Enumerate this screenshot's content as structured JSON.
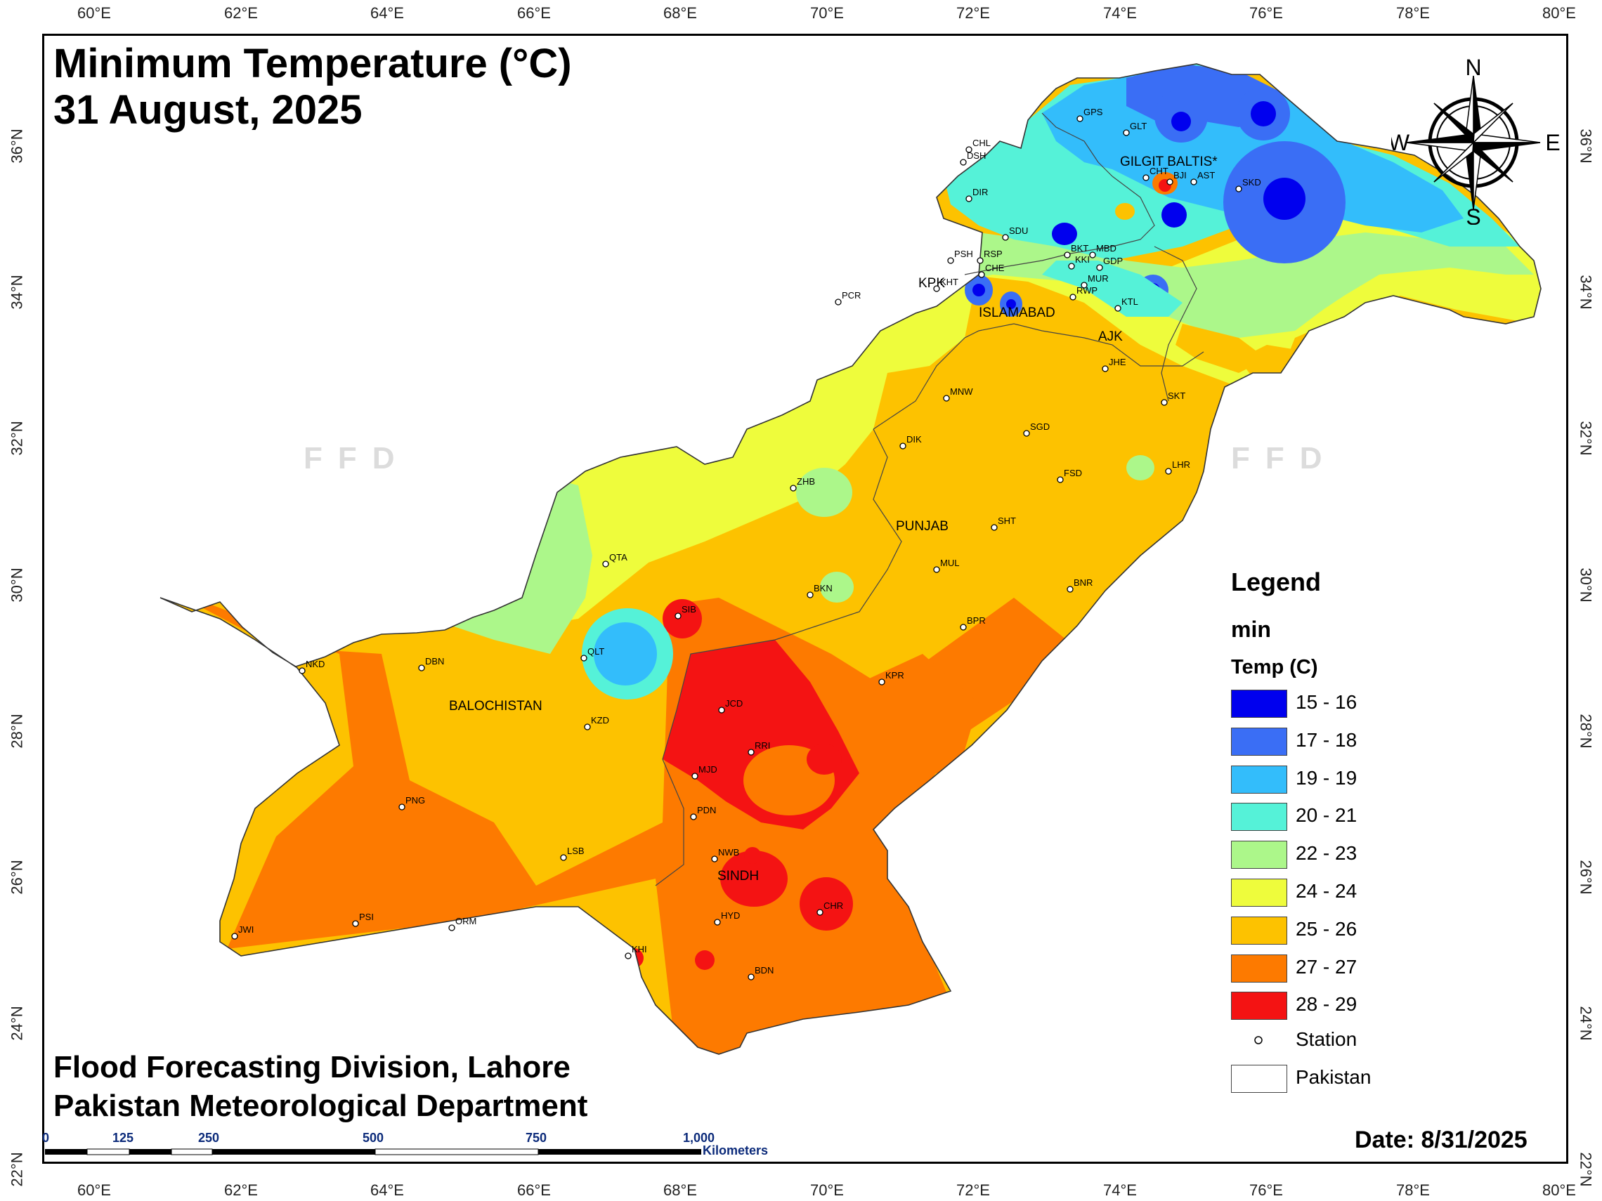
{
  "title": {
    "line1": "Minimum Temperature (°C)",
    "line2": "31 August, 2025"
  },
  "credits": {
    "line1": "Flood Forecasting Division, Lahore",
    "line2": "Pakistan Meteorological Department"
  },
  "date_label": "Date: 8/31/2025",
  "watermark": "FFD",
  "axes": {
    "longitudes": [
      "60°E",
      "62°E",
      "64°E",
      "66°E",
      "68°E",
      "70°E",
      "72°E",
      "74°E",
      "76°E",
      "78°E",
      "80°E"
    ],
    "latitudes": [
      "36°N",
      "34°N",
      "32°N",
      "30°N",
      "28°N",
      "26°N",
      "24°N",
      "22°N"
    ]
  },
  "compass": {
    "n": "N",
    "s": "S",
    "e": "E",
    "w": "W"
  },
  "legend": {
    "heading": "Legend",
    "layer": "min",
    "field": "Temp (C)",
    "classes": [
      {
        "label": "15 - 16",
        "color": "#0000ee"
      },
      {
        "label": "17 - 18",
        "color": "#3a6ef5"
      },
      {
        "label": "19 - 19",
        "color": "#33bdfb"
      },
      {
        "label": "20 - 21",
        "color": "#55f2d8"
      },
      {
        "label": "22 - 23",
        "color": "#acf78a"
      },
      {
        "label": "24 - 24",
        "color": "#eefc3c"
      },
      {
        "label": "25 - 26",
        "color": "#fdc200"
      },
      {
        "label": "27 - 27",
        "color": "#fd7a00"
      },
      {
        "label": "28 - 29",
        "color": "#f41313"
      }
    ],
    "station_label": "Station",
    "boundary_label": "Pakistan"
  },
  "scalebar": {
    "ticks": [
      "0",
      "125",
      "250",
      "500",
      "750",
      "1,000"
    ],
    "unit": "Kilometers"
  },
  "regions": [
    "GILGIT BALTIS*",
    "KPK",
    "ISLAMABAD",
    "AJK",
    "PUNJAB",
    "BALOCHISTAN",
    "SINDH"
  ],
  "stations": [
    "GPS",
    "GLT",
    "CHL",
    "DSH",
    "CHT",
    "BJI",
    "AST",
    "SKD",
    "DIR",
    "SDU",
    "PCR",
    "PSH",
    "RSP",
    "CHE",
    "KHT",
    "BKT",
    "MBD",
    "KKI",
    "GDP",
    "MUR",
    "RWP",
    "KTL",
    "JHE",
    "SKT",
    "MNW",
    "SGD",
    "DIK",
    "LHR",
    "FSD",
    "ZHB",
    "SHT",
    "QTA",
    "MUL",
    "BKN",
    "BNR",
    "BPR",
    "SIB",
    "NKD",
    "DBN",
    "QLT",
    "KPR",
    "JCD",
    "KZD",
    "RRI",
    "MJD",
    "PNG",
    "PDN",
    "LSB",
    "NWB",
    "HYD",
    "CHR",
    "PSI",
    "ORM",
    "JWI",
    "KHI",
    "BDN"
  ]
}
